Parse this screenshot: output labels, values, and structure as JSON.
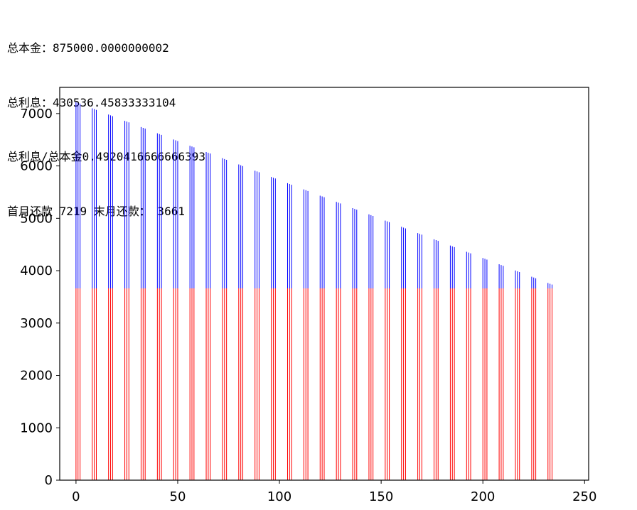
{
  "output": {
    "line1": "总本金：875000.0000000002",
    "line2": "总利息：430536.45833333104",
    "line3": "总利息/总本金0.4920416666666393",
    "line4": "首月还款 7219 末月还款： 3661"
  },
  "chart_data": {
    "type": "bar",
    "title": "",
    "xlabel": "",
    "ylabel": "",
    "xlim": [
      -8,
      252
    ],
    "ylim": [
      0,
      7500
    ],
    "xticks": [
      0,
      50,
      100,
      150,
      200,
      250
    ],
    "yticks": [
      0,
      1000,
      2000,
      3000,
      4000,
      5000,
      6000,
      7000
    ],
    "grid": false,
    "legend": "none",
    "colors": {
      "principal": "#ff0000",
      "interest": "#0000ff",
      "axes": "#000000"
    },
    "series": [
      {
        "color": "#ff0000",
        "constant_value": 3661
      },
      {
        "color": "#0000ff",
        "months": 240,
        "first_total": 7219,
        "last_total": 3661,
        "visible_groups_every": 8,
        "group_size": 3
      }
    ]
  }
}
